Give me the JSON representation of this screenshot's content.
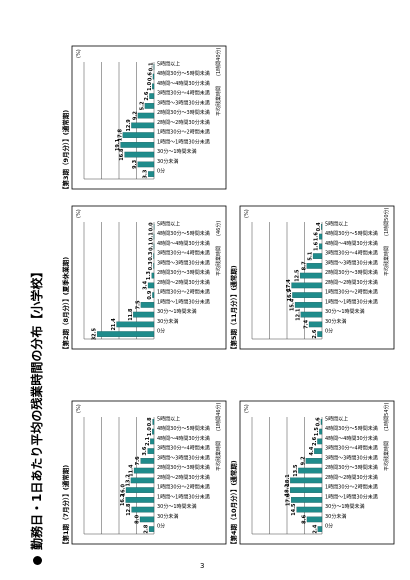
{
  "page": {
    "title": "勤務日・1日あたり平均の残業時間の分布【小学校】",
    "page_number": "3"
  },
  "chart_data": [
    {
      "type": "bar",
      "title": "【第1期（7月分）】(通常期)",
      "unit": "(%)",
      "categories": [
        "0分",
        "30分未満",
        "30分～1時間未満",
        "1時間～1時間30分未満",
        "1時間30分～2時間未満",
        "2時間～2時間30分未満",
        "2時間30分～3時間未満",
        "3時間～3時間30分未満",
        "3時間30分～4時間未満",
        "4時間～4時間30分未満",
        "4時間30分～5時間未満",
        "5時間以上"
      ],
      "values": [
        2.8,
        8,
        12.8,
        16.2,
        16.0,
        13.2,
        11.4,
        7.6,
        3.6,
        2.1,
        1.0,
        0.8
      ],
      "labels": [
        "2.8",
        "8.0",
        "12.8",
        "16.2",
        "16.0",
        "13.2",
        "11.4",
        "7.6",
        "3.6",
        "2.1",
        "1.0",
        "0.8"
      ],
      "xlabel": "",
      "footnote_left": "平均残業時間",
      "footnote_right": "(1時間46分)",
      "ylim": [
        0,
        40
      ]
    },
    {
      "type": "bar",
      "title": "【第2期（8月分）】(夏季休業期)",
      "unit": "(%)",
      "categories": [
        "0分",
        "30分未満",
        "30分～1時間未満",
        "1時間～1時間30分未満",
        "1時間30分～2時間未満",
        "2時間～2時間30分未満",
        "2時間30分～3時間未満",
        "3時間～3時間30分未満",
        "3時間30分～4時間未満",
        "4時間～4時間30分未満",
        "4時間30分～5時間未満",
        "5時間以上"
      ],
      "values": [
        32.5,
        21.4,
        11.8,
        7.5,
        0.9,
        3.4,
        1.3,
        0.3,
        0.3,
        0.1,
        0.1,
        0.0
      ],
      "labels": [
        "32.5",
        "21.4",
        "11.8",
        "7.5",
        "0.9",
        "3.4",
        "1.3",
        "0.3",
        "0.3",
        "0.1",
        "0.1",
        "0.0"
      ],
      "xlabel": "",
      "footnote_left": "平均残業時間",
      "footnote_right": "(46分)",
      "ylim": [
        0,
        40
      ]
    },
    {
      "type": "bar",
      "title": "【第3期（9月分）】(通常期)",
      "unit": "(%)",
      "categories": [
        "0分",
        "30分未満",
        "30分～1時間未満",
        "1時間～1時間30分未満",
        "1時間30分～2時間未満",
        "2時間～2時間30分未満",
        "2時間30分～3時間未満",
        "3時間～3時間30分未満",
        "3時間30分～4時間未満",
        "4時間～4時間30分未満",
        "4時間30分～5時間未満",
        "5時間以上"
      ],
      "values": [
        3.3,
        9.3,
        16.8,
        19.1,
        17.8,
        12.9,
        9.2,
        5.2,
        2.6,
        1.0,
        0.6,
        0.1
      ],
      "labels": [
        "3.3",
        "9.3",
        "16.8",
        "19.1",
        "17.8",
        "12.9",
        "9.2",
        "5.2",
        "2.6",
        "1.0",
        "0.6",
        "0.1"
      ],
      "xlabel": "",
      "footnote_left": "平均残業時間",
      "footnote_right": "(1時間40分)",
      "ylim": [
        0,
        40
      ]
    },
    {
      "type": "bar",
      "title": "【第4期（10月分）】(通常期)",
      "unit": "(%)",
      "categories": [
        "0分",
        "30分未満",
        "30分～1時間未満",
        "1時間～1時間30分未満",
        "1時間30分～2時間未満",
        "2時間～2時間30分未満",
        "2時間30分～3時間未満",
        "3時間～3時間30分未満",
        "3時間30分～4時間未満",
        "4時間～4時間30分未満",
        "4時間30分～5時間未満",
        "5時間以上"
      ],
      "values": [
        2.4,
        8.6,
        14.5,
        17.6,
        18.2,
        18.1,
        13.5,
        9.2,
        4.4,
        2.6,
        1.5,
        0.6
      ],
      "labels": [
        "2.4",
        "8.6",
        "14.5",
        "17.6",
        "18.2",
        "18.1",
        "13.5",
        "9.2",
        "4.4",
        "2.6",
        "1.5",
        "0.6"
      ],
      "xlabel": "",
      "footnote_left": "平均残業時間",
      "footnote_right": "(1時間54分)",
      "ylim": [
        0,
        40
      ]
    },
    {
      "type": "bar",
      "title": "【第5期（11月分）】(通常期)",
      "unit": "(%)",
      "categories": [
        "0分",
        "30分未満",
        "30分～1時間未満",
        "1時間～1時間30分未満",
        "1時間30分～2時間未満",
        "2時間～2時間30分未満",
        "2時間30分～3時間未満",
        "3時間～3時間30分未満",
        "3時間30分～4時間未満",
        "4時間～4時間30分未満",
        "4時間30分～5時間未満",
        "5時間以上"
      ],
      "values": [
        2.6,
        7.4,
        12.1,
        15.4,
        16.9,
        17.4,
        12.5,
        8.7,
        5.1,
        1.6,
        1.6,
        0.4
      ],
      "labels": [
        "2.6",
        "7.4",
        "12.1",
        "15.4",
        "16.9",
        "17.4",
        "12.5",
        "8.7",
        "5.1",
        "1.6",
        "1.6",
        "0.4"
      ],
      "xlabel": "",
      "footnote_left": "平均残業時間",
      "footnote_right": "(1時間50分)",
      "ylim": [
        0,
        40
      ]
    }
  ]
}
